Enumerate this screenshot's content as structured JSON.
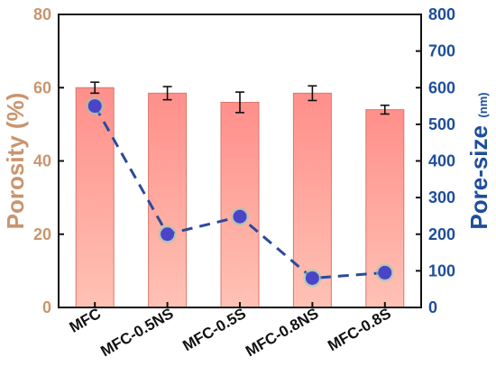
{
  "chart_data": {
    "type": "bar",
    "categories": [
      "MFC",
      "MFC-0.5NS",
      "MFC-0.5S",
      "MFC-0.8NS",
      "MFC-0.8S"
    ],
    "series": [
      {
        "type": "bar",
        "axis": "left",
        "values": [
          60.0,
          58.5,
          56.0,
          58.5,
          54.0
        ],
        "errors": [
          1.5,
          1.8,
          2.8,
          2.0,
          1.2
        ],
        "color": "#ff8f8a"
      },
      {
        "type": "line",
        "axis": "right",
        "values": [
          550,
          200,
          248,
          80,
          95
        ],
        "color": "#2b4a9a",
        "marker_color": "#4a44c8"
      }
    ],
    "ylabel": "Porosity (%)",
    "ylabel_color": "#c9956e",
    "ylim": [
      0,
      80
    ],
    "yticks": [
      "0",
      "20",
      "40",
      "60",
      "80"
    ],
    "y2label": "Pore-size",
    "y2label_unit": "(nm)",
    "y2label_color": "#1f4e9a",
    "y2lim": [
      0,
      800
    ],
    "y2ticks": [
      "0",
      "100",
      "200",
      "300",
      "400",
      "500",
      "600",
      "700",
      "800"
    ],
    "left_tick_color": "#c9956e",
    "right_tick_color": "#1f4e9a"
  }
}
